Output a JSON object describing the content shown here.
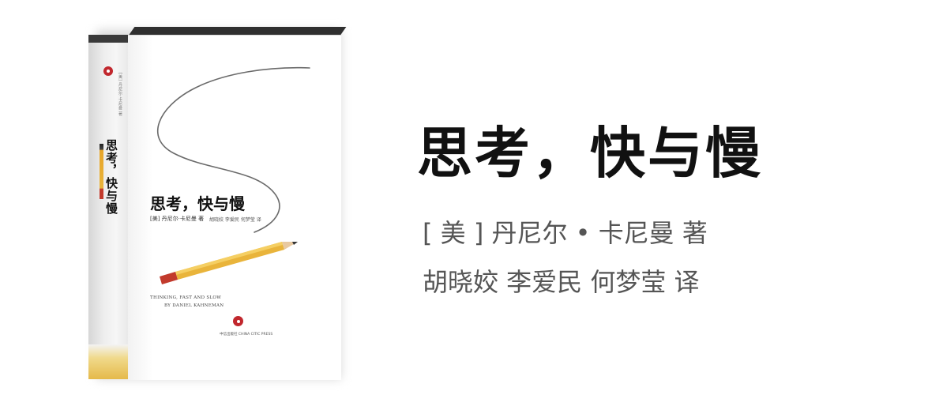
{
  "main": {
    "title": "思考，快与慢",
    "author": "[ 美 ] 丹尼尔 • 卡尼曼 著",
    "translators": "胡晓姣 李爱民 何梦莹 译"
  },
  "cover": {
    "spine_title": "思考，快与慢",
    "spine_author": "[美] 丹尼尔·卡尼曼 著",
    "title": "思考，快与慢",
    "author": "[美] 丹尼尔·卡尼曼 著",
    "translators": "胡晓姣 李爱民 何梦莹 译",
    "title_en_line1": "THINKING, FAST AND SLOW",
    "title_en_line2": "BY DANIEL KAHNEMAN",
    "publisher": "中信出版社 CHINA CITIC PRESS"
  },
  "colors": {
    "accent_red": "#c1272d",
    "pencil_yellow": "#e9b43b"
  }
}
